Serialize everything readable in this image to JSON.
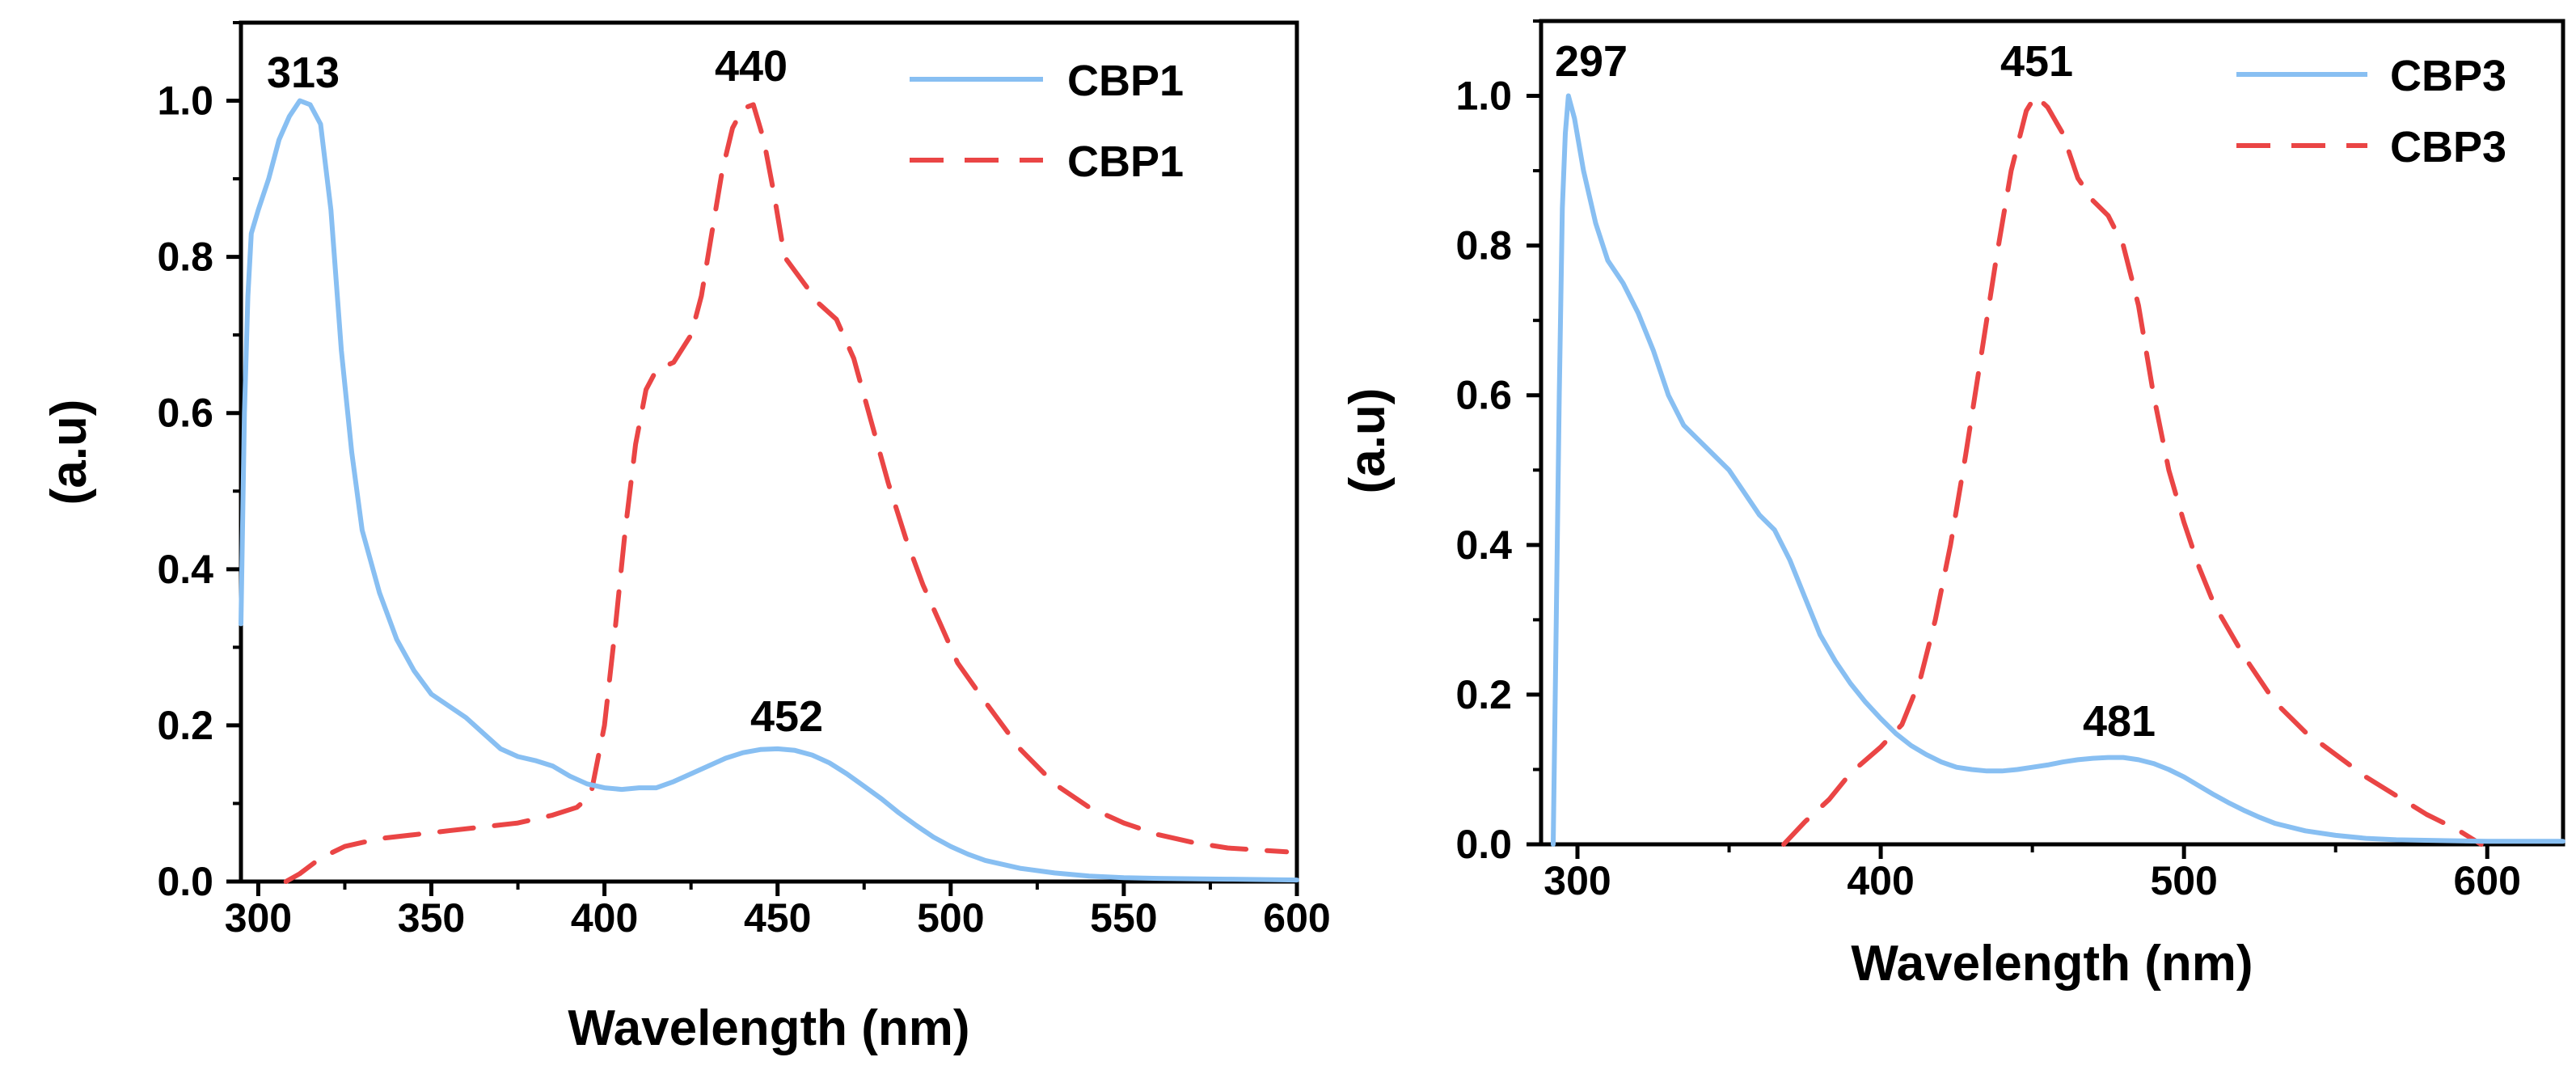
{
  "colors": {
    "absorption": "#88bff2",
    "emission": "#ea4545",
    "axes": "#000000"
  },
  "chart_data": [
    {
      "type": "line",
      "panel": "left",
      "xlabel": "Wavelength (nm)",
      "ylabel": "(a.u)",
      "xlim": [
        295,
        600
      ],
      "ylim": [
        0,
        1.1
      ],
      "xticks": [
        300,
        350,
        400,
        450,
        500,
        550,
        600
      ],
      "yticks": [
        0.0,
        0.2,
        0.4,
        0.6,
        0.8,
        1.0
      ],
      "x_tick_labels": [
        "300",
        "350",
        "400",
        "450",
        "500",
        "550",
        "600"
      ],
      "y_tick_labels": [
        "0.0",
        "0.2",
        "0.4",
        "0.6",
        "0.8",
        "1.0"
      ],
      "legend_position": "top-right",
      "series": [
        {
          "name": "CBP1",
          "style": "solid",
          "color_key": "absorption",
          "points": [
            [
              295,
              0.33
            ],
            [
              296,
              0.6
            ],
            [
              297,
              0.75
            ],
            [
              298,
              0.83
            ],
            [
              300,
              0.86
            ],
            [
              303,
              0.9
            ],
            [
              306,
              0.95
            ],
            [
              309,
              0.98
            ],
            [
              312,
              1.0
            ],
            [
              315,
              0.995
            ],
            [
              318,
              0.97
            ],
            [
              321,
              0.86
            ],
            [
              324,
              0.68
            ],
            [
              327,
              0.55
            ],
            [
              330,
              0.45
            ],
            [
              335,
              0.37
            ],
            [
              340,
              0.31
            ],
            [
              345,
              0.27
            ],
            [
              350,
              0.24
            ],
            [
              355,
              0.225
            ],
            [
              360,
              0.21
            ],
            [
              365,
              0.19
            ],
            [
              370,
              0.17
            ],
            [
              375,
              0.16
            ],
            [
              380,
              0.155
            ],
            [
              385,
              0.148
            ],
            [
              390,
              0.135
            ],
            [
              395,
              0.125
            ],
            [
              400,
              0.12
            ],
            [
              405,
              0.118
            ],
            [
              410,
              0.12
            ],
            [
              415,
              0.12
            ],
            [
              420,
              0.128
            ],
            [
              425,
              0.138
            ],
            [
              430,
              0.148
            ],
            [
              435,
              0.158
            ],
            [
              440,
              0.165
            ],
            [
              445,
              0.169
            ],
            [
              450,
              0.17
            ],
            [
              455,
              0.168
            ],
            [
              460,
              0.162
            ],
            [
              465,
              0.152
            ],
            [
              470,
              0.138
            ],
            [
              475,
              0.122
            ],
            [
              480,
              0.106
            ],
            [
              485,
              0.088
            ],
            [
              490,
              0.072
            ],
            [
              495,
              0.057
            ],
            [
              500,
              0.045
            ],
            [
              505,
              0.035
            ],
            [
              510,
              0.027
            ],
            [
              520,
              0.017
            ],
            [
              530,
              0.011
            ],
            [
              540,
              0.007
            ],
            [
              550,
              0.005
            ],
            [
              560,
              0.004
            ],
            [
              580,
              0.003
            ],
            [
              600,
              0.002
            ]
          ]
        },
        {
          "name": "CBP1",
          "style": "dashed",
          "color_key": "emission",
          "points": [
            [
              308,
              0.0
            ],
            [
              312,
              0.01
            ],
            [
              318,
              0.03
            ],
            [
              325,
              0.045
            ],
            [
              335,
              0.055
            ],
            [
              345,
              0.06
            ],
            [
              355,
              0.065
            ],
            [
              365,
              0.07
            ],
            [
              375,
              0.075
            ],
            [
              385,
              0.085
            ],
            [
              392,
              0.095
            ],
            [
              396,
              0.11
            ],
            [
              400,
              0.2
            ],
            [
              403,
              0.32
            ],
            [
              406,
              0.45
            ],
            [
              409,
              0.56
            ],
            [
              412,
              0.63
            ],
            [
              415,
              0.655
            ],
            [
              420,
              0.665
            ],
            [
              425,
              0.7
            ],
            [
              428,
              0.75
            ],
            [
              431,
              0.83
            ],
            [
              434,
              0.91
            ],
            [
              437,
              0.965
            ],
            [
              440,
              0.99
            ],
            [
              443,
              0.995
            ],
            [
              446,
              0.95
            ],
            [
              449,
              0.88
            ],
            [
              452,
              0.8
            ],
            [
              457,
              0.77
            ],
            [
              462,
              0.74
            ],
            [
              467,
              0.72
            ],
            [
              472,
              0.67
            ],
            [
              477,
              0.59
            ],
            [
              482,
              0.51
            ],
            [
              487,
              0.44
            ],
            [
              492,
              0.38
            ],
            [
              497,
              0.33
            ],
            [
              502,
              0.28
            ],
            [
              510,
              0.23
            ],
            [
              520,
              0.17
            ],
            [
              530,
              0.125
            ],
            [
              540,
              0.095
            ],
            [
              550,
              0.075
            ],
            [
              560,
              0.06
            ],
            [
              570,
              0.05
            ],
            [
              580,
              0.043
            ],
            [
              590,
              0.04
            ],
            [
              597,
              0.038
            ]
          ]
        }
      ],
      "annotations": [
        {
          "text": "313",
          "x": 313,
          "y": 1.0
        },
        {
          "text": "440",
          "x": 440,
          "y": 0.995
        },
        {
          "text": "452",
          "x": 452,
          "y": 0.17
        }
      ]
    },
    {
      "type": "line",
      "panel": "right",
      "xlabel": "Wavelength (nm)",
      "ylabel": "(a.u)",
      "xlim": [
        288,
        625
      ],
      "ylim": [
        0,
        1.1
      ],
      "xticks": [
        300,
        400,
        500,
        600
      ],
      "yticks": [
        0.0,
        0.2,
        0.4,
        0.6,
        0.8,
        1.0
      ],
      "x_tick_labels": [
        "300",
        "400",
        "500",
        "600"
      ],
      "y_tick_labels": [
        "0.0",
        "0.2",
        "0.4",
        "0.6",
        "0.8",
        "1.0"
      ],
      "legend_position": "top-right",
      "series": [
        {
          "name": "CBP3",
          "style": "solid",
          "color_key": "absorption",
          "points": [
            [
              292,
              0.0
            ],
            [
              293,
              0.3
            ],
            [
              294,
              0.6
            ],
            [
              295,
              0.85
            ],
            [
              296,
              0.95
            ],
            [
              297,
              1.0
            ],
            [
              299,
              0.97
            ],
            [
              302,
              0.9
            ],
            [
              306,
              0.83
            ],
            [
              310,
              0.78
            ],
            [
              315,
              0.75
            ],
            [
              320,
              0.71
            ],
            [
              325,
              0.66
            ],
            [
              330,
              0.6
            ],
            [
              335,
              0.56
            ],
            [
              340,
              0.54
            ],
            [
              345,
              0.52
            ],
            [
              350,
              0.5
            ],
            [
              355,
              0.47
            ],
            [
              360,
              0.44
            ],
            [
              365,
              0.42
            ],
            [
              370,
              0.38
            ],
            [
              375,
              0.33
            ],
            [
              380,
              0.28
            ],
            [
              385,
              0.245
            ],
            [
              390,
              0.215
            ],
            [
              395,
              0.19
            ],
            [
              400,
              0.168
            ],
            [
              405,
              0.148
            ],
            [
              410,
              0.132
            ],
            [
              415,
              0.12
            ],
            [
              420,
              0.11
            ],
            [
              425,
              0.103
            ],
            [
              430,
              0.1
            ],
            [
              435,
              0.098
            ],
            [
              440,
              0.098
            ],
            [
              445,
              0.1
            ],
            [
              450,
              0.103
            ],
            [
              455,
              0.106
            ],
            [
              460,
              0.11
            ],
            [
              465,
              0.113
            ],
            [
              470,
              0.115
            ],
            [
              475,
              0.116
            ],
            [
              480,
              0.116
            ],
            [
              485,
              0.113
            ],
            [
              490,
              0.108
            ],
            [
              495,
              0.1
            ],
            [
              500,
              0.09
            ],
            [
              505,
              0.078
            ],
            [
              510,
              0.066
            ],
            [
              515,
              0.055
            ],
            [
              520,
              0.045
            ],
            [
              525,
              0.036
            ],
            [
              530,
              0.028
            ],
            [
              540,
              0.018
            ],
            [
              550,
              0.012
            ],
            [
              560,
              0.008
            ],
            [
              570,
              0.006
            ],
            [
              585,
              0.005
            ],
            [
              600,
              0.004
            ],
            [
              625,
              0.004
            ]
          ]
        },
        {
          "name": "CBP3",
          "style": "dashed",
          "color_key": "emission",
          "points": [
            [
              368,
              0.0
            ],
            [
              375,
              0.03
            ],
            [
              383,
              0.06
            ],
            [
              390,
              0.095
            ],
            [
              400,
              0.13
            ],
            [
              407,
              0.16
            ],
            [
              413,
              0.22
            ],
            [
              418,
              0.3
            ],
            [
              423,
              0.4
            ],
            [
              428,
              0.52
            ],
            [
              433,
              0.65
            ],
            [
              438,
              0.78
            ],
            [
              443,
              0.9
            ],
            [
              448,
              0.98
            ],
            [
              451,
              1.0
            ],
            [
              455,
              0.985
            ],
            [
              460,
              0.95
            ],
            [
              465,
              0.89
            ],
            [
              470,
              0.86
            ],
            [
              475,
              0.84
            ],
            [
              480,
              0.8
            ],
            [
              485,
              0.72
            ],
            [
              490,
              0.6
            ],
            [
              495,
              0.5
            ],
            [
              500,
              0.43
            ],
            [
              505,
              0.37
            ],
            [
              510,
              0.32
            ],
            [
              520,
              0.25
            ],
            [
              530,
              0.19
            ],
            [
              540,
              0.15
            ],
            [
              550,
              0.12
            ],
            [
              560,
              0.09
            ],
            [
              570,
              0.065
            ],
            [
              580,
              0.04
            ],
            [
              590,
              0.02
            ],
            [
              598,
              0.0
            ]
          ]
        }
      ],
      "annotations": [
        {
          "text": "297",
          "x": 297,
          "y": 1.0
        },
        {
          "text": "451",
          "x": 451,
          "y": 1.0
        },
        {
          "text": "481",
          "x": 481,
          "y": 0.116
        }
      ]
    }
  ]
}
